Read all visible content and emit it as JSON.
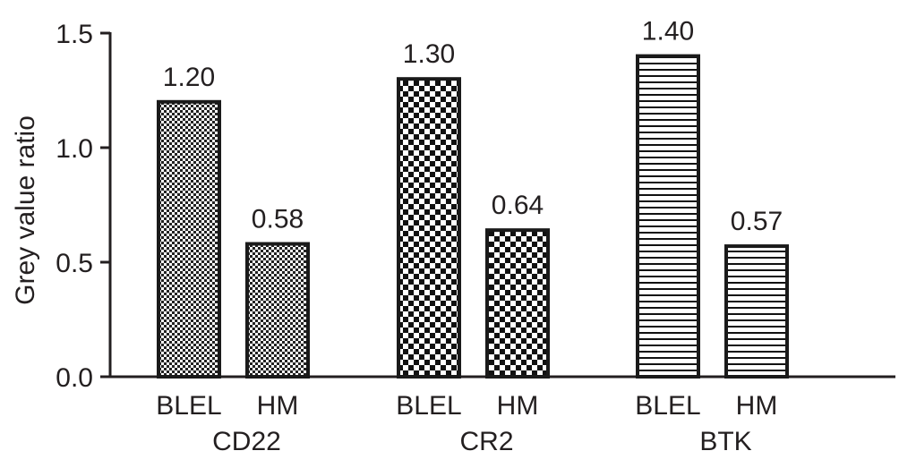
{
  "chart_data": {
    "type": "bar",
    "title": "",
    "xlabel": "",
    "ylabel": "Grey value ratio",
    "ylim": [
      0,
      1.5
    ],
    "yticks": [
      "0.0",
      "0.5",
      "1.0",
      "1.5"
    ],
    "grid": false,
    "legend": "none",
    "groups": [
      {
        "name": "CD22",
        "pattern": "fine-checker",
        "bars": [
          {
            "label": "BLEL",
            "value": 1.2,
            "value_text": "1.20"
          },
          {
            "label": "HM",
            "value": 0.58,
            "value_text": "0.58"
          }
        ]
      },
      {
        "name": "CR2",
        "pattern": "checker",
        "bars": [
          {
            "label": "BLEL",
            "value": 1.3,
            "value_text": "1.30"
          },
          {
            "label": "HM",
            "value": 0.64,
            "value_text": "0.64"
          }
        ]
      },
      {
        "name": "BTK",
        "pattern": "horizontal-stripes",
        "bars": [
          {
            "label": "BLEL",
            "value": 1.4,
            "value_text": "1.40"
          },
          {
            "label": "HM",
            "value": 0.57,
            "value_text": "0.57"
          }
        ]
      }
    ],
    "colors": {
      "axis": "#231f20",
      "bar_stroke": "#1a1a1a",
      "pattern_dark": "#111111",
      "background": "#ffffff"
    }
  }
}
